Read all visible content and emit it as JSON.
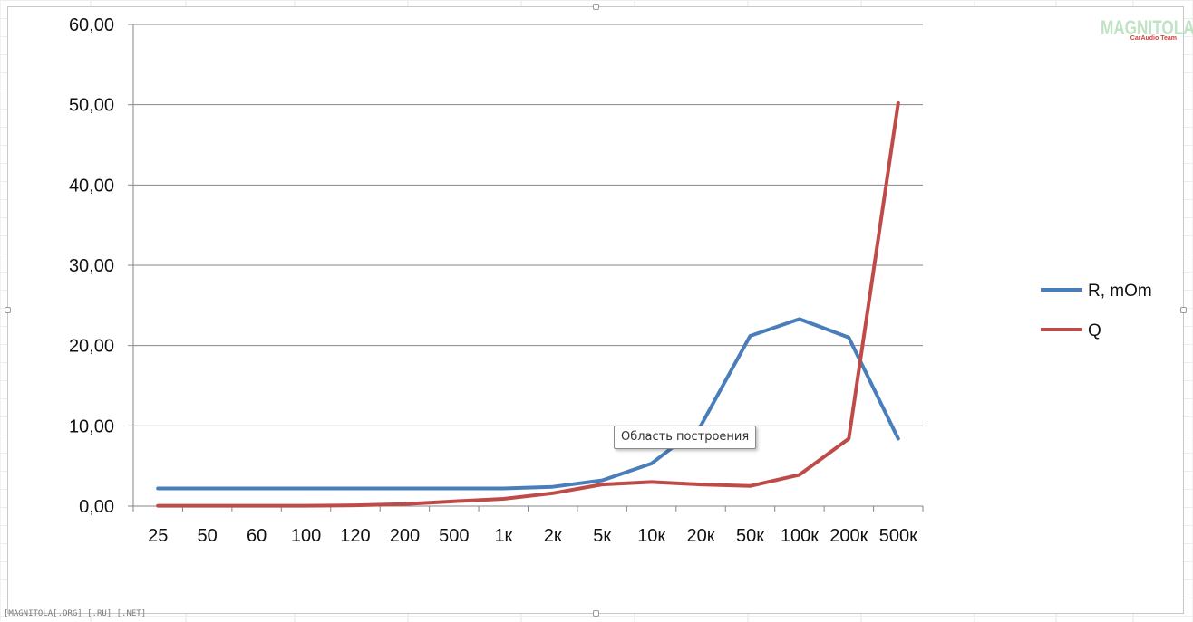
{
  "chart_data": {
    "type": "line",
    "categories": [
      "25",
      "50",
      "60",
      "100",
      "120",
      "200",
      "500",
      "1к",
      "2к",
      "5к",
      "10к",
      "20к",
      "50к",
      "100к",
      "200к",
      "500к"
    ],
    "ylim": [
      0,
      60
    ],
    "yticks": [
      "0,00",
      "10,00",
      "20,00",
      "30,00",
      "40,00",
      "50,00",
      "60,00"
    ],
    "grid": true,
    "legend_position": "right",
    "series": [
      {
        "name": "R, mOm",
        "color": "#4a7ebb",
        "values": [
          2.2,
          2.2,
          2.2,
          2.2,
          2.2,
          2.2,
          2.2,
          2.2,
          2.4,
          3.2,
          5.3,
          10.0,
          21.2,
          23.3,
          21.0,
          8.4
        ]
      },
      {
        "name": "Q",
        "color": "#be4b48",
        "values": [
          0.05,
          0.05,
          0.05,
          0.05,
          0.1,
          0.25,
          0.6,
          0.9,
          1.6,
          2.7,
          3.0,
          2.7,
          2.5,
          3.9,
          8.4,
          50.2
        ]
      }
    ]
  },
  "tooltip_text": "Область построения",
  "logo": {
    "main": "MAGNITOLA",
    "sub": "CarAudio Team",
    "main_color": "#bfe3c4",
    "sub_color": "#d04040"
  },
  "watermark": "[MAGNITOLA[.ORG] [.RU] [.NET]"
}
